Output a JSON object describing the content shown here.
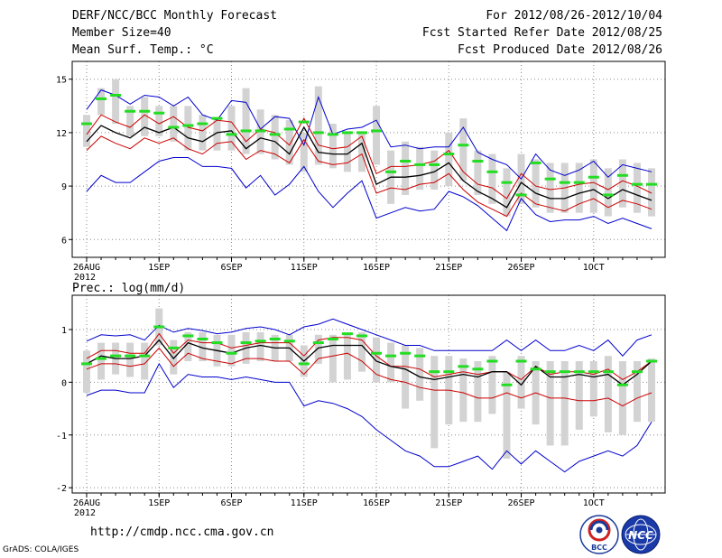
{
  "header": {
    "title": "DERF/NCC/BCC Monthly Forecast",
    "member_size": "Member Size=40",
    "variable": "Mean Surf. Temp.: °C",
    "period": "For 2012/08/26-2012/10/04",
    "fcst_started": "Fcst Started Refer Date 2012/08/25",
    "fcst_produced": "Fcst Produced Date 2012/08/26"
  },
  "footer": {
    "url": "http://cmdp.ncc.cma.gov.cn",
    "credit": "GrADS: COLA/IGES",
    "logo_bcc": "BCC",
    "logo_ncc": "NCC"
  },
  "colors": {
    "box": "#d3d3d3",
    "median": "#22dd22",
    "mean": "#000000",
    "sd": "#cc0000",
    "envelope": "#0000cc",
    "grid": "#8a8a8a"
  },
  "chart_data": [
    {
      "type": "line",
      "title": "Mean Surf. Temp.: °C",
      "x": [
        1,
        2,
        3,
        4,
        5,
        6,
        7,
        8,
        9,
        10,
        11,
        12,
        13,
        14,
        15,
        16,
        17,
        18,
        19,
        20,
        21,
        22,
        23,
        24,
        25,
        26,
        27,
        28,
        29,
        30,
        31,
        32,
        33,
        34,
        35,
        36,
        37,
        38,
        39,
        40
      ],
      "xticks": [
        {
          "x": 1,
          "label": "26AUG"
        },
        {
          "x": 6,
          "label": "1SEP"
        },
        {
          "x": 11,
          "label": "6SEP"
        },
        {
          "x": 16,
          "label": "11SEP"
        },
        {
          "x": 21,
          "label": "16SEP"
        },
        {
          "x": 26,
          "label": "21SEP"
        },
        {
          "x": 31,
          "label": "26SEP"
        },
        {
          "x": 36,
          "label": "1OCT"
        }
      ],
      "xsub": "2012",
      "ylim": [
        5,
        16
      ],
      "yticks": [
        6,
        9,
        12,
        15
      ],
      "grid": true,
      "series": [
        {
          "name": "ensemble max",
          "values": [
            13.3,
            14.4,
            14.1,
            13.6,
            14.1,
            14.0,
            13.5,
            14.0,
            13.0,
            12.7,
            13.8,
            13.7,
            12.2,
            12.9,
            12.8,
            11.3,
            14.0,
            11.9,
            12.2,
            12.3,
            12.7,
            11.2,
            11.3,
            11.1,
            11.2,
            11.2,
            12.3,
            10.9,
            10.5,
            10.2,
            9.4,
            10.8,
            9.9,
            9.6,
            9.9,
            10.4,
            9.5,
            10.2,
            10.0,
            9.8
          ]
        },
        {
          "name": "mean + 1 sd",
          "values": [
            11.9,
            13.0,
            12.6,
            12.3,
            13.0,
            12.5,
            12.9,
            12.3,
            12.1,
            12.7,
            12.6,
            11.5,
            12.2,
            12.0,
            11.3,
            12.8,
            11.3,
            11.1,
            11.2,
            11.8,
            9.7,
            10.1,
            10.1,
            10.2,
            10.4,
            11.0,
            9.8,
            9.1,
            8.9,
            8.3,
            9.7,
            9.0,
            8.8,
            8.9,
            9.1,
            9.2,
            8.8,
            9.3,
            9.0,
            8.6
          ]
        },
        {
          "name": "ensemble mean",
          "values": [
            11.5,
            12.4,
            12.0,
            11.7,
            12.3,
            12.0,
            12.3,
            11.7,
            11.5,
            12.0,
            12.1,
            11.1,
            11.7,
            11.5,
            10.8,
            12.3,
            10.9,
            10.8,
            10.8,
            11.4,
            9.1,
            9.5,
            9.5,
            9.6,
            9.8,
            10.3,
            9.3,
            8.7,
            8.3,
            7.8,
            9.2,
            8.6,
            8.3,
            8.3,
            8.6,
            8.8,
            8.3,
            8.8,
            8.5,
            8.2
          ]
        },
        {
          "name": "mean - 1 sd",
          "values": [
            11.0,
            11.8,
            11.4,
            11.1,
            11.7,
            11.4,
            11.7,
            11.1,
            10.8,
            11.4,
            11.5,
            10.5,
            11.0,
            10.8,
            10.3,
            11.6,
            10.4,
            10.2,
            10.3,
            10.8,
            8.6,
            8.9,
            8.8,
            9.1,
            9.2,
            9.7,
            8.8,
            8.1,
            7.7,
            7.3,
            8.6,
            8.0,
            7.8,
            7.6,
            8.0,
            8.3,
            7.8,
            8.2,
            8.0,
            7.7
          ]
        },
        {
          "name": "ensemble min",
          "values": [
            8.7,
            9.6,
            9.2,
            9.2,
            9.8,
            10.4,
            10.6,
            10.6,
            10.1,
            10.1,
            10.0,
            8.9,
            9.6,
            8.5,
            9.1,
            10.1,
            8.7,
            7.8,
            8.6,
            9.3,
            7.2,
            7.5,
            7.8,
            7.6,
            7.7,
            8.7,
            8.4,
            7.9,
            7.2,
            6.5,
            8.3,
            7.4,
            7.0,
            7.1,
            7.1,
            7.3,
            6.9,
            7.2,
            6.9,
            6.6
          ]
        }
      ],
      "boxes": [
        [
          11.2,
          13.0
        ],
        [
          13.0,
          14.5
        ],
        [
          12.5,
          15.0
        ],
        [
          11.8,
          13.5
        ],
        [
          11.8,
          14.0
        ],
        [
          11.8,
          13.5
        ],
        [
          11.5,
          13.5
        ],
        [
          11.0,
          13.5
        ],
        [
          11.0,
          13.0
        ],
        [
          11.0,
          12.8
        ],
        [
          11.0,
          13.5
        ],
        [
          10.8,
          14.5
        ],
        [
          10.8,
          13.3
        ],
        [
          10.5,
          13.0
        ],
        [
          10.2,
          12.7
        ],
        [
          9.8,
          12.0
        ],
        [
          10.2,
          14.6
        ],
        [
          10.0,
          12.5
        ],
        [
          9.8,
          12.0
        ],
        [
          9.8,
          12.0
        ],
        [
          10.2,
          13.5
        ],
        [
          8.0,
          11.0
        ],
        [
          8.5,
          11.5
        ],
        [
          8.8,
          11.2
        ],
        [
          8.8,
          11.0
        ],
        [
          9.0,
          12.0
        ],
        [
          9.3,
          12.8
        ],
        [
          8.5,
          11.0
        ],
        [
          8.0,
          10.8
        ],
        [
          7.3,
          10.0
        ],
        [
          8.0,
          10.8
        ],
        [
          7.8,
          10.5
        ],
        [
          7.5,
          10.3
        ],
        [
          7.5,
          10.3
        ],
        [
          7.5,
          10.3
        ],
        [
          7.5,
          10.5
        ],
        [
          7.3,
          10.0
        ],
        [
          7.8,
          10.5
        ],
        [
          7.5,
          10.3
        ],
        [
          7.3,
          10.0
        ]
      ],
      "median": [
        12.5,
        13.9,
        14.1,
        13.2,
        13.2,
        13.1,
        12.3,
        12.4,
        12.5,
        12.8,
        11.9,
        12.1,
        12.1,
        11.9,
        12.2,
        12.6,
        12.0,
        11.9,
        12.0,
        12.0,
        12.1,
        9.8,
        10.4,
        10.2,
        10.2,
        10.8,
        11.3,
        10.4,
        9.8,
        9.2,
        8.5,
        10.3,
        9.4,
        9.2,
        9.2,
        9.5,
        8.5,
        9.6,
        9.1,
        9.1
      ]
    },
    {
      "type": "line",
      "title": "Prec.: log(mm/d)",
      "x": [
        1,
        2,
        3,
        4,
        5,
        6,
        7,
        8,
        9,
        10,
        11,
        12,
        13,
        14,
        15,
        16,
        17,
        18,
        19,
        20,
        21,
        22,
        23,
        24,
        25,
        26,
        27,
        28,
        29,
        30,
        31,
        32,
        33,
        34,
        35,
        36,
        37,
        38,
        39,
        40
      ],
      "xticks": [
        {
          "x": 1,
          "label": "26AUG"
        },
        {
          "x": 6,
          "label": "1SEP"
        },
        {
          "x": 11,
          "label": "6SEP"
        },
        {
          "x": 16,
          "label": "11SEP"
        },
        {
          "x": 21,
          "label": "16SEP"
        },
        {
          "x": 26,
          "label": "21SEP"
        },
        {
          "x": 31,
          "label": "26SEP"
        },
        {
          "x": 36,
          "label": "1OCT"
        }
      ],
      "xsub": "2012",
      "ylim": [
        -2.1,
        1.65
      ],
      "yticks": [
        -2,
        -1,
        0,
        1
      ],
      "grid": true,
      "series": [
        {
          "name": "ensemble max",
          "values": [
            0.78,
            0.9,
            0.88,
            0.9,
            0.8,
            1.08,
            0.95,
            1.02,
            0.98,
            0.92,
            0.95,
            1.02,
            1.05,
            1.0,
            0.9,
            1.05,
            1.1,
            1.2,
            1.1,
            1.0,
            0.9,
            0.8,
            0.7,
            0.7,
            0.6,
            0.6,
            0.6,
            0.6,
            0.6,
            0.8,
            0.6,
            0.8,
            0.6,
            0.6,
            0.7,
            0.6,
            0.8,
            0.5,
            0.8,
            0.9
          ]
        },
        {
          "name": "mean + 1 sd",
          "values": [
            0.45,
            0.6,
            0.6,
            0.55,
            0.55,
            0.92,
            0.55,
            0.8,
            0.75,
            0.75,
            0.65,
            0.7,
            0.75,
            0.75,
            0.75,
            0.5,
            0.8,
            0.85,
            0.85,
            0.8,
            0.5,
            0.3,
            0.3,
            0.25,
            0.1,
            0.15,
            0.2,
            0.15,
            0.2,
            0.2,
            0.05,
            0.3,
            0.15,
            0.2,
            0.2,
            0.15,
            0.25,
            0.05,
            0.2,
            0.4
          ]
        },
        {
          "name": "ensemble mean",
          "values": [
            0.35,
            0.5,
            0.45,
            0.45,
            0.5,
            0.8,
            0.45,
            0.75,
            0.65,
            0.6,
            0.55,
            0.65,
            0.7,
            0.65,
            0.65,
            0.4,
            0.65,
            0.7,
            0.7,
            0.7,
            0.4,
            0.3,
            0.25,
            0.1,
            0.05,
            0.1,
            0.15,
            0.1,
            0.2,
            0.2,
            -0.05,
            0.3,
            0.1,
            0.1,
            0.15,
            0.1,
            0.15,
            -0.05,
            0.15,
            0.4
          ]
        },
        {
          "name": "mean - 1 sd",
          "values": [
            0.25,
            0.35,
            0.35,
            0.3,
            0.35,
            0.65,
            0.3,
            0.55,
            0.45,
            0.4,
            0.35,
            0.45,
            0.45,
            0.4,
            0.4,
            0.15,
            0.45,
            0.5,
            0.55,
            0.4,
            0.15,
            0.05,
            0.0,
            -0.1,
            -0.15,
            -0.15,
            -0.2,
            -0.3,
            -0.3,
            -0.2,
            -0.3,
            -0.2,
            -0.3,
            -0.3,
            -0.35,
            -0.35,
            -0.3,
            -0.45,
            -0.3,
            -0.2
          ]
        },
        {
          "name": "ensemble min",
          "values": [
            -0.25,
            -0.15,
            -0.15,
            -0.2,
            -0.2,
            0.35,
            -0.1,
            0.15,
            0.1,
            0.1,
            0.05,
            0.1,
            0.05,
            0.0,
            0.0,
            -0.45,
            -0.35,
            -0.4,
            -0.5,
            -0.65,
            -0.9,
            -1.1,
            -1.3,
            -1.4,
            -1.6,
            -1.6,
            -1.5,
            -1.4,
            -1.65,
            -1.3,
            -1.55,
            -1.3,
            -1.5,
            -1.7,
            -1.5,
            -1.4,
            -1.3,
            -1.4,
            -1.2,
            -0.75
          ]
        }
      ],
      "boxes": [
        [
          -0.2,
          0.6
        ],
        [
          0.05,
          0.75
        ],
        [
          0.15,
          0.75
        ],
        [
          0.1,
          0.75
        ],
        [
          0.05,
          0.75
        ],
        [
          0.7,
          1.4
        ],
        [
          0.15,
          0.8
        ],
        [
          0.4,
          0.95
        ],
        [
          0.4,
          0.95
        ],
        [
          0.3,
          0.9
        ],
        [
          0.3,
          0.9
        ],
        [
          0.35,
          0.95
        ],
        [
          0.4,
          0.95
        ],
        [
          0.4,
          0.9
        ],
        [
          0.4,
          0.9
        ],
        [
          0.1,
          0.7
        ],
        [
          0.35,
          0.9
        ],
        [
          0.0,
          0.9
        ],
        [
          0.05,
          0.9
        ],
        [
          0.2,
          0.95
        ],
        [
          0.0,
          0.85
        ],
        [
          0.0,
          0.75
        ],
        [
          -0.5,
          0.7
        ],
        [
          -0.35,
          0.65
        ],
        [
          -1.25,
          0.5
        ],
        [
          -0.8,
          0.5
        ],
        [
          -0.75,
          0.45
        ],
        [
          -0.75,
          0.4
        ],
        [
          -0.6,
          0.5
        ],
        [
          -1.45,
          0.2
        ],
        [
          -0.5,
          0.5
        ],
        [
          -0.8,
          0.4
        ],
        [
          -1.2,
          0.4
        ],
        [
          -1.2,
          0.4
        ],
        [
          -0.9,
          0.4
        ],
        [
          -0.65,
          0.4
        ],
        [
          -0.95,
          0.5
        ],
        [
          -1.0,
          0.4
        ],
        [
          -0.75,
          0.4
        ],
        [
          -0.75,
          0.45
        ]
      ],
      "median": [
        0.35,
        0.45,
        0.5,
        0.5,
        0.5,
        1.05,
        0.65,
        0.88,
        0.82,
        0.75,
        0.55,
        0.75,
        0.78,
        0.82,
        0.78,
        0.35,
        0.75,
        0.82,
        0.92,
        0.88,
        0.55,
        0.5,
        0.55,
        0.5,
        0.2,
        0.2,
        0.3,
        0.25,
        0.4,
        -0.05,
        0.4,
        0.25,
        0.2,
        0.2,
        0.2,
        0.2,
        0.2,
        -0.05,
        0.2,
        0.4
      ]
    }
  ]
}
